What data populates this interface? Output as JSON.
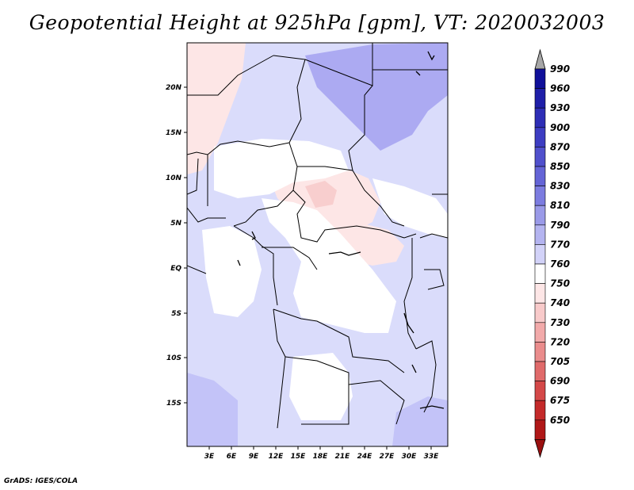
{
  "title": "Geopotential Height at 925hPa [gpm], VT: 2020032003",
  "credit": "GrADS: IGES/COLA",
  "map": {
    "lat_labels": [
      "20N",
      "15N",
      "10N",
      "5N",
      "EQ",
      "5S",
      "10S",
      "15S"
    ],
    "lon_labels": [
      "3E",
      "6E",
      "9E",
      "12E",
      "15E",
      "18E",
      "21E",
      "24E",
      "27E",
      "30E",
      "33E"
    ]
  },
  "colorbar": {
    "levels": [
      "990",
      "960",
      "930",
      "900",
      "870",
      "850",
      "830",
      "810",
      "790",
      "770",
      "760",
      "750",
      "740",
      "730",
      "720",
      "705",
      "690",
      "675",
      "650"
    ],
    "colors": {
      "above_990": "#a6a6a6",
      "bands_top_to_bottom": [
        "#10109a",
        "#1f1fa8",
        "#2e2eb6",
        "#3d3dc2",
        "#5050cc",
        "#6464d6",
        "#7c7ce0",
        "#9a9ae8",
        "#b4b4f0",
        "#d2d2f8",
        "#ffffff",
        "#fde6e6",
        "#f8caca",
        "#f2aaaa",
        "#ea8c8c",
        "#e06a6a",
        "#d44848",
        "#c42a2a",
        "#b01818"
      ],
      "below_650": "#9a1010"
    }
  },
  "colors": {
    "map_background": "#dadcfb",
    "light_blue": "#dadcfb",
    "mid_blue": "#c3c3f8",
    "dark_blue": "#acaaf2",
    "pink": "#fde6e6",
    "deeper_pink": "#f8cece",
    "white": "#ffffff",
    "border": "#000000"
  }
}
